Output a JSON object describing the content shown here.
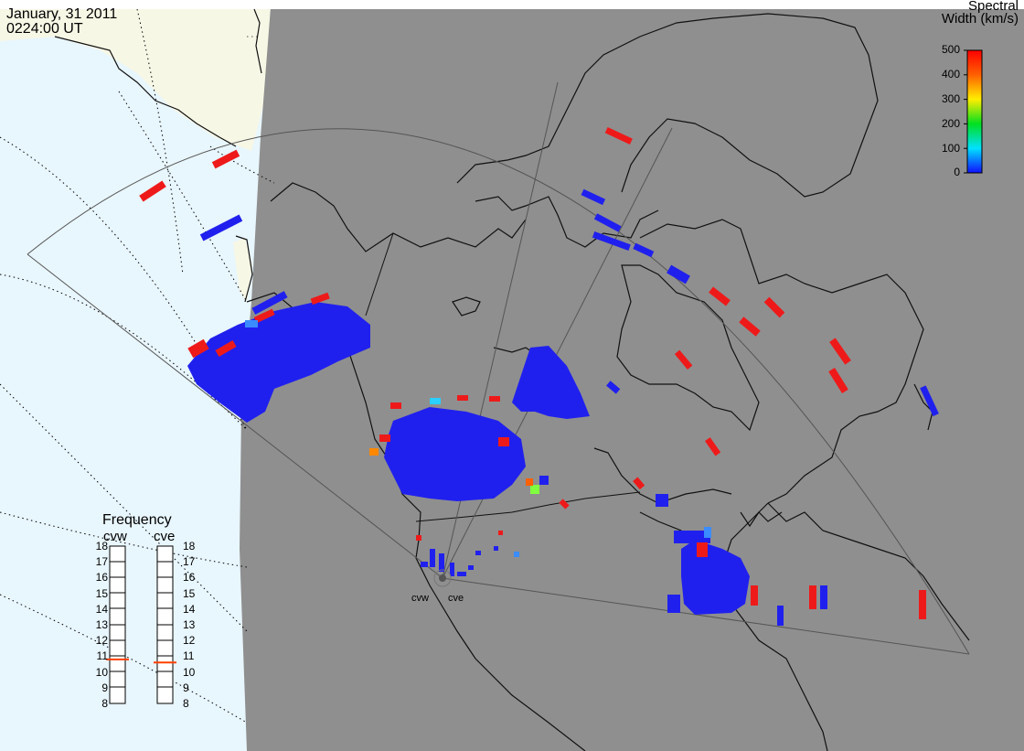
{
  "header": {
    "date": "January, 31 2011",
    "time": "0224:00 UT"
  },
  "colorbar": {
    "title_line1": "Spectral",
    "title_line2": "Width (km/s)",
    "ticks": [
      "500",
      "400",
      "300",
      "200",
      "100",
      "0"
    ],
    "min": 0,
    "max": 500
  },
  "frequency": {
    "title": "Frequency",
    "radars": [
      {
        "name": "cvw",
        "value": 10.8
      },
      {
        "name": "cve",
        "value": 10.6
      }
    ],
    "scale": [
      "18",
      "17",
      "16",
      "15",
      "14",
      "13",
      "12",
      "11",
      "10",
      "9",
      "8"
    ]
  },
  "sites": {
    "west": "cvw",
    "east": "cve"
  },
  "colors": {
    "night": "#8f8f8f",
    "day_ocean": "#e8f6fd",
    "day_land": "#f7f7e6",
    "low": "#2020ee",
    "high": "#ee1a1a",
    "indicator": "#ff4000"
  }
}
